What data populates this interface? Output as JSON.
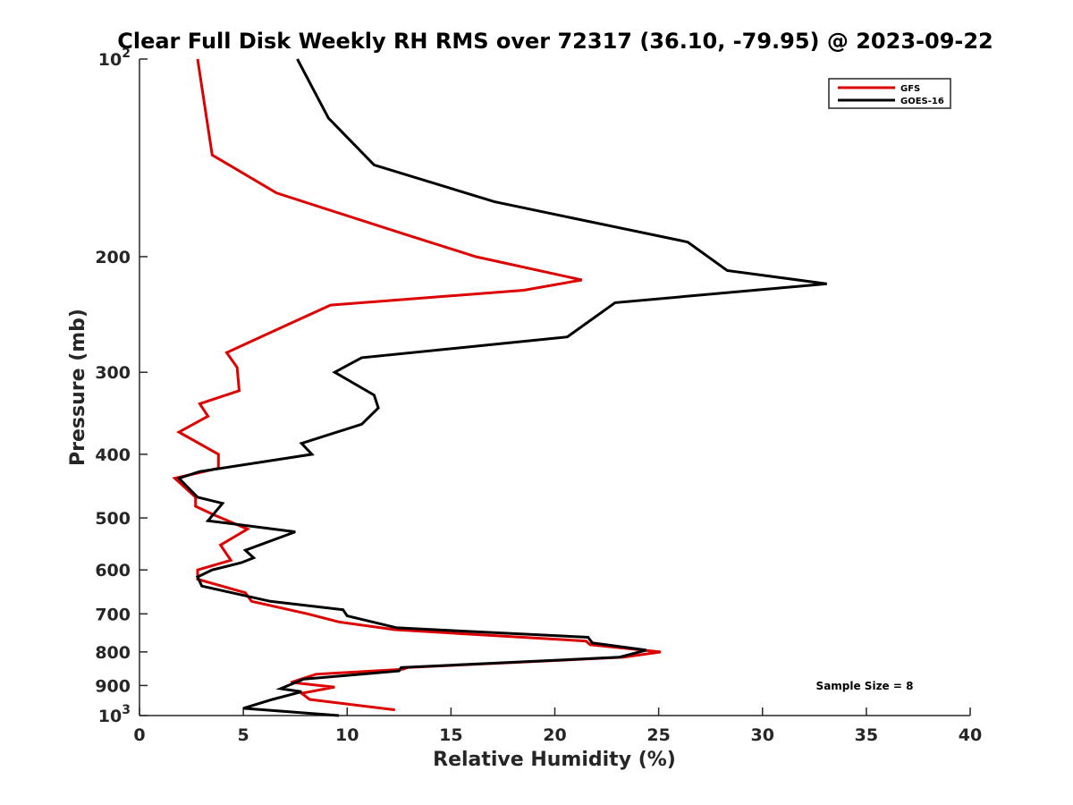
{
  "chart_data": {
    "type": "line",
    "title": "Clear Full Disk Weekly RH RMS over 72317 (36.10, -79.95) @ 2023-09-22",
    "xlabel": "Relative Humidity (%)",
    "ylabel": "Pressure (mb)",
    "xlim": [
      0,
      40
    ],
    "ylim": [
      100,
      1000
    ],
    "yscale": "log",
    "y_reversed": true,
    "xticks": [
      "0",
      "5",
      "10",
      "15",
      "20",
      "25",
      "30",
      "35",
      "40"
    ],
    "yticks": [
      {
        "value": 100,
        "base": "10",
        "exp": "2"
      },
      {
        "value": 200,
        "base": "200",
        "exp": ""
      },
      {
        "value": 300,
        "base": "300",
        "exp": ""
      },
      {
        "value": 400,
        "base": "400",
        "exp": ""
      },
      {
        "value": 500,
        "base": "500",
        "exp": ""
      },
      {
        "value": 600,
        "base": "600",
        "exp": ""
      },
      {
        "value": 700,
        "base": "700",
        "exp": ""
      },
      {
        "value": 800,
        "base": "800",
        "exp": ""
      },
      {
        "value": 900,
        "base": "900",
        "exp": ""
      },
      {
        "value": 1000,
        "base": "10",
        "exp": "3"
      }
    ],
    "legend_position": "top-right",
    "annotation": "Sample Size = 8",
    "series": [
      {
        "name": "GFS",
        "color": "#dd0000",
        "x": [
          2.8,
          3.5,
          6.6,
          12.8,
          16.2,
          21.3,
          18.5,
          9.2,
          7.0,
          4.2,
          4.7,
          4.8,
          2.9,
          3.3,
          1.9,
          3.8,
          3.8,
          1.7,
          2.7,
          2.7,
          3.6,
          5.2,
          3.9,
          4.4,
          2.8,
          2.8,
          5.1,
          5.4,
          8.1,
          9.6,
          12.3,
          21.5,
          21.7,
          25.1,
          23.3,
          12.9,
          12.7,
          8.5,
          7.3,
          9.4,
          7.8,
          8.2,
          12.3
        ],
        "y": [
          100,
          140,
          160,
          185,
          200,
          217,
          225,
          237,
          255,
          280,
          295,
          320,
          335,
          350,
          370,
          400,
          420,
          435,
          465,
          480,
          495,
          520,
          550,
          580,
          600,
          620,
          650,
          670,
          700,
          720,
          740,
          770,
          780,
          800,
          815,
          845,
          850,
          865,
          890,
          905,
          925,
          945,
          980
        ]
      },
      {
        "name": "GOES-16",
        "color": "#000000",
        "x": [
          7.6,
          9.1,
          11.3,
          17.1,
          26.4,
          28.3,
          33.1,
          22.9,
          20.6,
          10.7,
          9.4,
          11.3,
          11.5,
          10.7,
          7.8,
          8.3,
          2.9,
          1.9,
          2.8,
          4.0,
          3.3,
          7.5,
          5.1,
          5.5,
          4.9,
          3.5,
          2.8,
          3.0,
          6.3,
          9.8,
          10.0,
          12.4,
          21.6,
          21.8,
          24.4,
          23.1,
          12.6,
          12.5,
          7.9,
          6.8,
          7.8,
          6.4,
          5.0,
          9.6
        ],
        "y": [
          100,
          123,
          145,
          165,
          190,
          210,
          220,
          235,
          265,
          285,
          300,
          325,
          340,
          360,
          385,
          400,
          425,
          435,
          465,
          475,
          505,
          525,
          560,
          575,
          585,
          600,
          615,
          635,
          670,
          690,
          705,
          735,
          760,
          775,
          795,
          815,
          845,
          855,
          880,
          910,
          920,
          945,
          975,
          1000
        ]
      }
    ]
  }
}
